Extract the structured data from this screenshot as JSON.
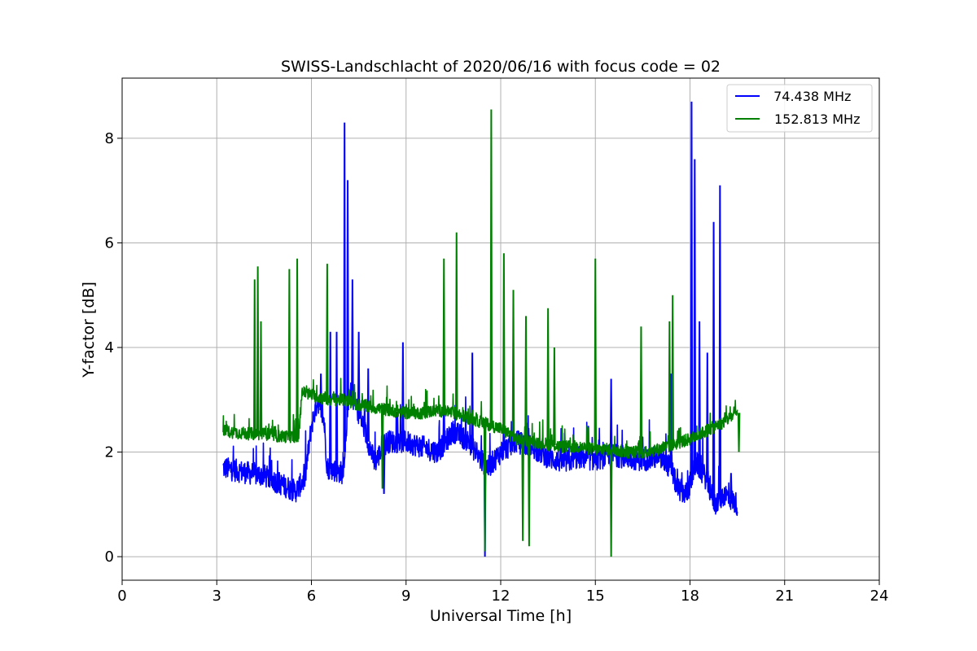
{
  "chart_data": {
    "type": "line",
    "title": "SWISS-Landschlacht of 2020/06/16 with focus code = 02",
    "xlabel": "Universal Time [h]",
    "ylabel": "Y-factor [dB]",
    "xlim": [
      0,
      24
    ],
    "ylim": [
      -0.45,
      9.15
    ],
    "xticks": [
      0,
      3,
      6,
      9,
      12,
      15,
      18,
      21,
      24
    ],
    "xtick_labels": [
      "0",
      "3",
      "6",
      "9",
      "12",
      "15",
      "18",
      "21",
      "24"
    ],
    "yticks": [
      0,
      2,
      4,
      6,
      8
    ],
    "ytick_labels": [
      "0",
      "2",
      "4",
      "6",
      "8"
    ],
    "grid": true,
    "legend_position": "top-right",
    "series": [
      {
        "name": " 74.438 MHz",
        "color": "#0000ff",
        "base": [
          [
            3.2,
            1.7
          ],
          [
            3.6,
            1.65
          ],
          [
            4.0,
            1.6
          ],
          [
            4.5,
            1.55
          ],
          [
            5.0,
            1.4
          ],
          [
            5.5,
            1.25
          ],
          [
            5.8,
            1.5
          ],
          [
            6.0,
            2.5
          ],
          [
            6.2,
            3.0
          ],
          [
            6.4,
            2.6
          ],
          [
            6.5,
            1.7
          ],
          [
            7.0,
            1.6
          ],
          [
            7.2,
            3.2
          ],
          [
            7.6,
            2.6
          ],
          [
            8.0,
            1.8
          ],
          [
            8.4,
            2.2
          ],
          [
            9.0,
            2.2
          ],
          [
            9.5,
            2.1
          ],
          [
            10.0,
            2.0
          ],
          [
            10.5,
            2.4
          ],
          [
            11.0,
            2.2
          ],
          [
            11.3,
            1.9
          ],
          [
            11.6,
            1.7
          ],
          [
            12.0,
            2.0
          ],
          [
            12.5,
            2.2
          ],
          [
            13.0,
            2.1
          ],
          [
            13.5,
            1.9
          ],
          [
            14.0,
            1.8
          ],
          [
            14.5,
            1.9
          ],
          [
            15.0,
            1.85
          ],
          [
            15.5,
            1.95
          ],
          [
            16.0,
            1.9
          ],
          [
            16.5,
            1.85
          ],
          [
            17.0,
            1.9
          ],
          [
            17.4,
            1.7
          ],
          [
            17.6,
            1.3
          ],
          [
            17.9,
            1.2
          ],
          [
            18.2,
            1.8
          ],
          [
            18.5,
            1.5
          ],
          [
            18.8,
            1.0
          ],
          [
            19.1,
            1.2
          ],
          [
            19.5,
            1.0
          ]
        ],
        "spikes": [
          [
            6.3,
            3.5
          ],
          [
            6.6,
            4.3
          ],
          [
            6.8,
            4.3
          ],
          [
            7.05,
            8.3
          ],
          [
            7.15,
            7.2
          ],
          [
            7.3,
            5.3
          ],
          [
            7.5,
            4.3
          ],
          [
            7.8,
            3.6
          ],
          [
            8.3,
            1.2
          ],
          [
            8.9,
            4.1
          ],
          [
            10.2,
            3.2
          ],
          [
            11.1,
            3.9
          ],
          [
            11.5,
            0.0
          ],
          [
            12.1,
            3.0
          ],
          [
            15.5,
            3.4
          ],
          [
            17.4,
            3.5
          ],
          [
            18.05,
            8.7
          ],
          [
            18.15,
            7.6
          ],
          [
            18.3,
            4.5
          ],
          [
            18.55,
            3.9
          ],
          [
            18.75,
            6.4
          ],
          [
            18.95,
            7.1
          ],
          [
            19.3,
            1.6
          ]
        ]
      },
      {
        "name": "152.813 MHz",
        "color": "#008000",
        "base": [
          [
            3.2,
            2.4
          ],
          [
            4.0,
            2.35
          ],
          [
            4.5,
            2.35
          ],
          [
            5.0,
            2.3
          ],
          [
            5.6,
            2.3
          ],
          [
            5.7,
            3.15
          ],
          [
            6.0,
            3.1
          ],
          [
            6.5,
            3.0
          ],
          [
            7.0,
            3.0
          ],
          [
            7.5,
            2.9
          ],
          [
            8.0,
            2.85
          ],
          [
            8.5,
            2.8
          ],
          [
            9.0,
            2.75
          ],
          [
            9.5,
            2.75
          ],
          [
            10.0,
            2.8
          ],
          [
            10.5,
            2.75
          ],
          [
            11.0,
            2.65
          ],
          [
            11.5,
            2.55
          ],
          [
            12.0,
            2.45
          ],
          [
            12.5,
            2.25
          ],
          [
            13.0,
            2.2
          ],
          [
            13.5,
            2.15
          ],
          [
            14.0,
            2.1
          ],
          [
            14.5,
            2.1
          ],
          [
            15.0,
            2.05
          ],
          [
            15.5,
            2.05
          ],
          [
            16.0,
            2.0
          ],
          [
            16.5,
            2.0
          ],
          [
            17.0,
            2.05
          ],
          [
            17.5,
            2.15
          ],
          [
            18.0,
            2.25
          ],
          [
            18.5,
            2.4
          ],
          [
            19.0,
            2.55
          ],
          [
            19.5,
            2.75
          ]
        ],
        "spikes": [
          [
            4.2,
            5.3
          ],
          [
            4.3,
            5.55
          ],
          [
            4.4,
            4.5
          ],
          [
            5.3,
            5.5
          ],
          [
            5.55,
            5.7
          ],
          [
            6.5,
            5.6
          ],
          [
            8.25,
            1.3
          ],
          [
            10.2,
            5.7
          ],
          [
            10.6,
            6.2
          ],
          [
            11.5,
            0.1
          ],
          [
            11.7,
            8.55
          ],
          [
            12.1,
            5.8
          ],
          [
            12.4,
            5.1
          ],
          [
            12.7,
            0.3
          ],
          [
            12.9,
            0.2
          ],
          [
            12.8,
            4.6
          ],
          [
            13.5,
            4.75
          ],
          [
            13.7,
            4.0
          ],
          [
            15.0,
            5.7
          ],
          [
            15.5,
            0.0
          ],
          [
            16.45,
            4.4
          ],
          [
            17.35,
            4.5
          ],
          [
            17.45,
            5.0
          ],
          [
            19.55,
            2.0
          ]
        ]
      }
    ]
  }
}
